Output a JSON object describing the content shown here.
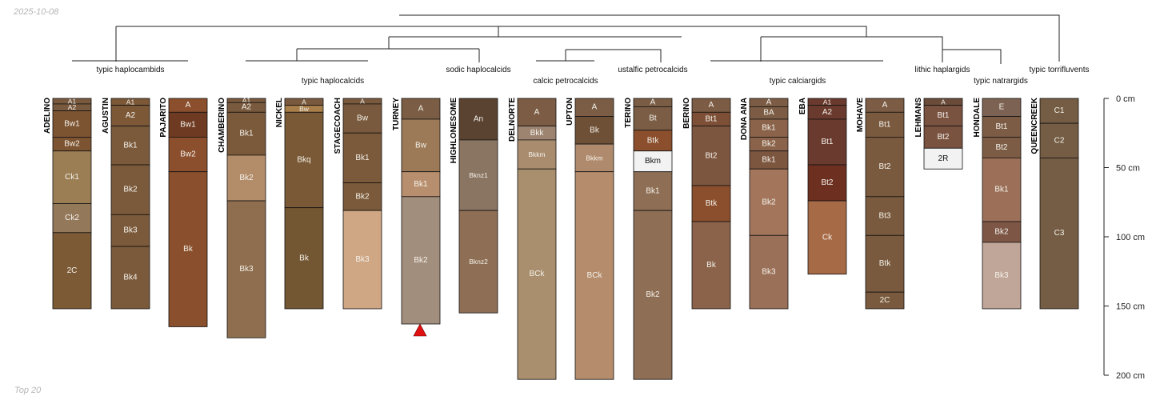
{
  "date": "2025-10-08",
  "footer": "Top 20",
  "axis": {
    "label_unit": "cm",
    "ticks": [
      0,
      50,
      100,
      150,
      200
    ],
    "max_depth": 200
  },
  "taxa": [
    "typic haplocambids",
    "typic haplocalcids",
    "sodic haplocalcids",
    "calcic petrocalcids",
    "ustalfic petrocalcids",
    "typic calciargids",
    "lithic haplargids",
    "typic natrargids",
    "typic torrifluvents"
  ],
  "profiles": [
    {
      "name": "ADELINO",
      "horizons": [
        {
          "name": "A1",
          "top": 0,
          "bottom": 4,
          "color": "#7a5a3e"
        },
        {
          "name": "A2",
          "top": 4,
          "bottom": 9,
          "color": "#7a5a3e"
        },
        {
          "name": "Bw1",
          "top": 9,
          "bottom": 28,
          "color": "#7d5432"
        },
        {
          "name": "Bw2",
          "top": 28,
          "bottom": 38,
          "color": "#7d5432"
        },
        {
          "name": "Ck1",
          "top": 38,
          "bottom": 76,
          "color": "#9c7e55"
        },
        {
          "name": "Ck2",
          "top": 76,
          "bottom": 97,
          "color": "#94785a"
        },
        {
          "name": "2C",
          "top": 97,
          "bottom": 152,
          "color": "#7c5a36"
        }
      ]
    },
    {
      "name": "AGUSTIN",
      "horizons": [
        {
          "name": "A1",
          "top": 0,
          "bottom": 5,
          "color": "#7c5837"
        },
        {
          "name": "A2",
          "top": 5,
          "bottom": 20,
          "color": "#7c5837"
        },
        {
          "name": "Bk1",
          "top": 20,
          "bottom": 48,
          "color": "#7b5a3b"
        },
        {
          "name": "Bk2",
          "top": 48,
          "bottom": 84,
          "color": "#7b5a3b"
        },
        {
          "name": "Bk3",
          "top": 84,
          "bottom": 107,
          "color": "#7b5a3b"
        },
        {
          "name": "Bk4",
          "top": 107,
          "bottom": 152,
          "color": "#7b5a3b"
        }
      ]
    },
    {
      "name": "PAJARITO",
      "horizons": [
        {
          "name": "A",
          "top": 0,
          "bottom": 10,
          "color": "#8b4f2d"
        },
        {
          "name": "Bw1",
          "top": 10,
          "bottom": 28,
          "color": "#6e3a22"
        },
        {
          "name": "Bw2",
          "top": 28,
          "bottom": 53,
          "color": "#8b4f2d"
        },
        {
          "name": "Bk",
          "top": 53,
          "bottom": 165,
          "color": "#8a4f2c"
        }
      ]
    },
    {
      "name": "CHAMBERINO",
      "horizons": [
        {
          "name": "A1",
          "top": 0,
          "bottom": 3,
          "color": "#7a5a3e"
        },
        {
          "name": "A2",
          "top": 3,
          "bottom": 10,
          "color": "#7a5a3e"
        },
        {
          "name": "Bk1",
          "top": 10,
          "bottom": 41,
          "color": "#7b5a3b"
        },
        {
          "name": "Bk2",
          "top": 41,
          "bottom": 74,
          "color": "#b38d6a"
        },
        {
          "name": "Bk3",
          "top": 74,
          "bottom": 173,
          "color": "#8e6e4e"
        }
      ]
    },
    {
      "name": "NICKEL",
      "horizons": [
        {
          "name": "A",
          "top": 0,
          "bottom": 5,
          "color": "#7a5a3e"
        },
        {
          "name": "Bw",
          "top": 5,
          "bottom": 10,
          "color": "#a87e4a"
        },
        {
          "name": "Bkq",
          "top": 10,
          "bottom": 79,
          "color": "#7a5a36"
        },
        {
          "name": "Bk",
          "top": 79,
          "bottom": 152,
          "color": "#735632"
        }
      ]
    },
    {
      "name": "STAGECOACH",
      "horizons": [
        {
          "name": "A",
          "top": 0,
          "bottom": 4,
          "color": "#7a5a3e"
        },
        {
          "name": "Bw",
          "top": 4,
          "bottom": 25,
          "color": "#7a5a3e"
        },
        {
          "name": "Bk1",
          "top": 25,
          "bottom": 61,
          "color": "#7b5a3b"
        },
        {
          "name": "Bk2",
          "top": 61,
          "bottom": 81,
          "color": "#7b5a3b"
        },
        {
          "name": "Bk3",
          "top": 81,
          "bottom": 152,
          "color": "#cfa785"
        }
      ]
    },
    {
      "name": "TURNEY",
      "horizons": [
        {
          "name": "A",
          "top": 0,
          "bottom": 15,
          "color": "#7a5d44"
        },
        {
          "name": "Bw",
          "top": 15,
          "bottom": 53,
          "color": "#9c7a57"
        },
        {
          "name": "Bk1",
          "top": 53,
          "bottom": 71,
          "color": "#b88f6e"
        },
        {
          "name": "Bk2",
          "top": 71,
          "bottom": 163,
          "color": "#a28e7d"
        }
      ]
    },
    {
      "name": "HIGHLONESOME",
      "horizons": [
        {
          "name": "An",
          "top": 0,
          "bottom": 30,
          "color": "#5a4331"
        },
        {
          "name": "Bknz1",
          "top": 30,
          "bottom": 81,
          "color": "#8a7462"
        },
        {
          "name": "Bknz2",
          "top": 81,
          "bottom": 155,
          "color": "#8e6e54"
        }
      ]
    },
    {
      "name": "DELNORTE",
      "horizons": [
        {
          "name": "A",
          "top": 0,
          "bottom": 20,
          "color": "#7c5c44"
        },
        {
          "name": "Bkk",
          "top": 20,
          "bottom": 30,
          "color": "#9c8470"
        },
        {
          "name": "Bkkm",
          "top": 30,
          "bottom": 51,
          "color": "#a98c6e"
        },
        {
          "name": "BCk",
          "top": 51,
          "bottom": 203,
          "color": "#a98f6e"
        }
      ]
    },
    {
      "name": "UPTON",
      "horizons": [
        {
          "name": "A",
          "top": 0,
          "bottom": 13,
          "color": "#7a5d44"
        },
        {
          "name": "Bk",
          "top": 13,
          "bottom": 33,
          "color": "#6e5036"
        },
        {
          "name": "Bkkm",
          "top": 33,
          "bottom": 53,
          "color": "#b08a6c"
        },
        {
          "name": "BCk",
          "top": 53,
          "bottom": 203,
          "color": "#b58d6c"
        }
      ]
    },
    {
      "name": "TERINO",
      "horizons": [
        {
          "name": "A",
          "top": 0,
          "bottom": 6,
          "color": "#7a5d44"
        },
        {
          "name": "Bt",
          "top": 6,
          "bottom": 23,
          "color": "#7a5d44"
        },
        {
          "name": "Btk",
          "top": 23,
          "bottom": 38,
          "color": "#8b4f2d"
        },
        {
          "name": "Bkm",
          "top": 38,
          "bottom": 53,
          "color": "#f2f2f2"
        },
        {
          "name": "Bk1",
          "top": 53,
          "bottom": 81,
          "color": "#8e6e54"
        },
        {
          "name": "Bk2",
          "top": 81,
          "bottom": 203,
          "color": "#8e6e54"
        }
      ]
    },
    {
      "name": "BERINO",
      "horizons": [
        {
          "name": "A",
          "top": 0,
          "bottom": 10,
          "color": "#7c5c44"
        },
        {
          "name": "Bt1",
          "top": 10,
          "bottom": 20,
          "color": "#7d4f36"
        },
        {
          "name": "Bt2",
          "top": 20,
          "bottom": 63,
          "color": "#7d5640"
        },
        {
          "name": "Btk",
          "top": 63,
          "bottom": 89,
          "color": "#8b4f2d"
        },
        {
          "name": "Bk",
          "top": 89,
          "bottom": 152,
          "color": "#8a634a"
        }
      ]
    },
    {
      "name": "DONA ANA",
      "horizons": [
        {
          "name": "A",
          "top": 0,
          "bottom": 6,
          "color": "#7c5c44"
        },
        {
          "name": "BA",
          "top": 6,
          "bottom": 15,
          "color": "#7c5c44"
        },
        {
          "name": "Bk1",
          "top": 15,
          "bottom": 28,
          "color": "#8a634a"
        },
        {
          "name": "Bk2",
          "top": 28,
          "bottom": 38,
          "color": "#8a634a"
        },
        {
          "name": "Bk1",
          "top": 38,
          "bottom": 51,
          "color": "#7d5640"
        },
        {
          "name": "Bk2",
          "top": 51,
          "bottom": 99,
          "color": "#a3765c"
        },
        {
          "name": "Bk3",
          "top": 99,
          "bottom": 152,
          "color": "#9b7058"
        }
      ]
    },
    {
      "name": "EBA",
      "horizons": [
        {
          "name": "A1",
          "top": 0,
          "bottom": 5,
          "color": "#6b3a2e"
        },
        {
          "name": "A2",
          "top": 5,
          "bottom": 15,
          "color": "#6b3a2e"
        },
        {
          "name": "Bt1",
          "top": 15,
          "bottom": 48,
          "color": "#6b3a2e"
        },
        {
          "name": "Bt2",
          "top": 48,
          "bottom": 74,
          "color": "#6d3020"
        },
        {
          "name": "Ck",
          "top": 74,
          "bottom": 127,
          "color": "#a76a47"
        }
      ]
    },
    {
      "name": "MOHAVE",
      "horizons": [
        {
          "name": "A",
          "top": 0,
          "bottom": 10,
          "color": "#7c5c44"
        },
        {
          "name": "Bt1",
          "top": 10,
          "bottom": 28,
          "color": "#7a5a3e"
        },
        {
          "name": "Bt2",
          "top": 28,
          "bottom": 71,
          "color": "#7a5a3e"
        },
        {
          "name": "Bt3",
          "top": 71,
          "bottom": 99,
          "color": "#7a5a3e"
        },
        {
          "name": "Btk",
          "top": 99,
          "bottom": 140,
          "color": "#7a5a3e"
        },
        {
          "name": "2C",
          "top": 140,
          "bottom": 152,
          "color": "#7a5a3e"
        }
      ]
    },
    {
      "name": "LEHMANS",
      "horizons": [
        {
          "name": "A",
          "top": 0,
          "bottom": 5,
          "color": "#6b4c3a"
        },
        {
          "name": "Bt1",
          "top": 5,
          "bottom": 20,
          "color": "#7a5240"
        },
        {
          "name": "Bt2",
          "top": 20,
          "bottom": 36,
          "color": "#7a5240"
        },
        {
          "name": "2R",
          "top": 36,
          "bottom": 51,
          "color": "#f2f2f2"
        }
      ]
    },
    {
      "name": "HONDALE",
      "horizons": [
        {
          "name": "E",
          "top": 0,
          "bottom": 13,
          "color": "#7c6252"
        },
        {
          "name": "Bt1",
          "top": 13,
          "bottom": 28,
          "color": "#7c5c44"
        },
        {
          "name": "Bt2",
          "top": 28,
          "bottom": 43,
          "color": "#7c5c44"
        },
        {
          "name": "Bk1",
          "top": 43,
          "bottom": 89,
          "color": "#9c7058"
        },
        {
          "name": "Bk2",
          "top": 89,
          "bottom": 104,
          "color": "#7d5646"
        },
        {
          "name": "Bk3",
          "top": 104,
          "bottom": 152,
          "color": "#c0a698"
        }
      ]
    },
    {
      "name": "QUEENCREEK",
      "horizons": [
        {
          "name": "C1",
          "top": 0,
          "bottom": 18,
          "color": "#745d44"
        },
        {
          "name": "C2",
          "top": 18,
          "bottom": 43,
          "color": "#745d44"
        },
        {
          "name": "C3",
          "top": 43,
          "bottom": 152,
          "color": "#745d44"
        }
      ]
    }
  ]
}
